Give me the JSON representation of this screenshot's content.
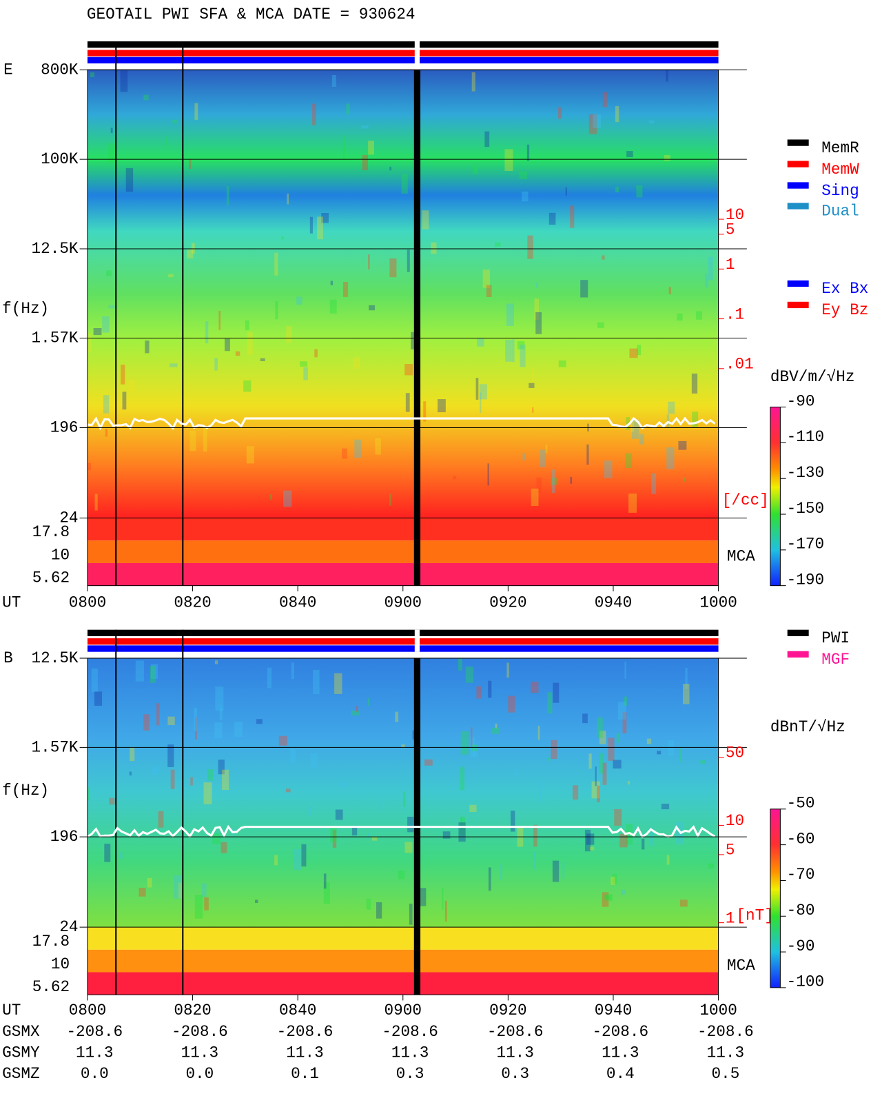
{
  "chart_data": [
    {
      "type": "spectrogram",
      "title": "GEOTAIL  PWI SFA & MCA   DATE = 930624",
      "panel_label": "E",
      "y_label": "f(Hz)",
      "x_label": "UT",
      "log_y": true,
      "ylim": [
        24,
        800000
      ],
      "yticks": [
        {
          "value": 800000,
          "label": "800K"
        },
        {
          "value": 100000,
          "label": "100K"
        },
        {
          "value": 12500,
          "label": "12.5K"
        },
        {
          "value": 1570,
          "label": "1.57K"
        },
        196,
        24
      ],
      "mca_label": "MCA",
      "mca_channels": [
        17.8,
        10,
        5.62
      ],
      "xlim": [
        480,
        600
      ],
      "xticks": [
        {
          "value": 480,
          "label": "0800"
        },
        {
          "value": 500,
          "label": "0820"
        },
        {
          "value": 520,
          "label": "0840"
        },
        {
          "value": 540,
          "label": "0900"
        },
        {
          "value": 560,
          "label": "0920"
        },
        {
          "value": 580,
          "label": "0940"
        },
        {
          "value": 600,
          "label": "1000"
        }
      ],
      "y2lim": [
        1e-05,
        10000
      ],
      "y2ticks": [
        10,
        5,
        1,
        {
          "value": 0.1,
          "label": ".1"
        },
        {
          "value": 0.01,
          "label": ".01"
        }
      ],
      "y2_label": "[/cc]",
      "colorbar_label": "dBV/m/√Hz",
      "clim": [
        -190,
        -90
      ],
      "cticks": [
        -90,
        -110,
        -130,
        -150,
        -170,
        -190
      ],
      "legend": [
        {
          "name": "MemR",
          "color": "#000000"
        },
        {
          "name": "MemW",
          "color": "#ff0000"
        },
        {
          "name": "Sing",
          "color": "#0000ff"
        },
        {
          "name": "Dual",
          "color": "#1e90c8"
        }
      ],
      "legend2": [
        {
          "name": "Ex Bx",
          "color": "#0000ff"
        },
        {
          "name": "Ey Bz",
          "color": "#ff0000"
        }
      ]
    },
    {
      "type": "spectrogram",
      "panel_label": "B",
      "y_label": "f(Hz)",
      "x_label": "UT",
      "log_y": true,
      "ylim": [
        24,
        12500
      ],
      "yticks": [
        {
          "value": 12500,
          "label": "12.5K"
        },
        {
          "value": 1570,
          "label": "1.57K"
        },
        196,
        24
      ],
      "mca_label": "MCA",
      "mca_channels": [
        17.8,
        10,
        5.62
      ],
      "xlim": [
        480,
        600
      ],
      "xticks": [
        {
          "value": 480,
          "label": "0800"
        },
        {
          "value": 500,
          "label": "0820"
        },
        {
          "value": 520,
          "label": "0840"
        },
        {
          "value": 540,
          "label": "0900"
        },
        {
          "value": 560,
          "label": "0920"
        },
        {
          "value": 580,
          "label": "0940"
        },
        {
          "value": 600,
          "label": "1000"
        }
      ],
      "y2lim": [
        0.9,
        520
      ],
      "y2ticks": [
        50,
        10,
        5,
        1
      ],
      "y2_label": "[nT]",
      "colorbar_label": "dBnT/√Hz",
      "clim": [
        -100,
        -50
      ],
      "cticks": [
        -50,
        -60,
        -70,
        -80,
        -90,
        -100
      ],
      "legend": [
        {
          "name": "PWI",
          "color": "#000000"
        },
        {
          "name": "MGF",
          "color": "#ff1493"
        }
      ]
    }
  ],
  "orbit": {
    "rows": [
      {
        "name": "GSMX",
        "values": [
          "-208.6",
          "-208.6",
          "-208.6",
          "-208.6",
          "-208.6",
          "-208.6",
          "-208.6"
        ]
      },
      {
        "name": "GSMY",
        "values": [
          "11.3",
          "11.3",
          "11.3",
          "11.3",
          "11.3",
          "11.3",
          "11.3"
        ]
      },
      {
        "name": "GSMZ",
        "values": [
          "0.0",
          "0.0",
          "0.1",
          "0.3",
          "0.3",
          "0.4",
          "0.5"
        ]
      }
    ]
  }
}
